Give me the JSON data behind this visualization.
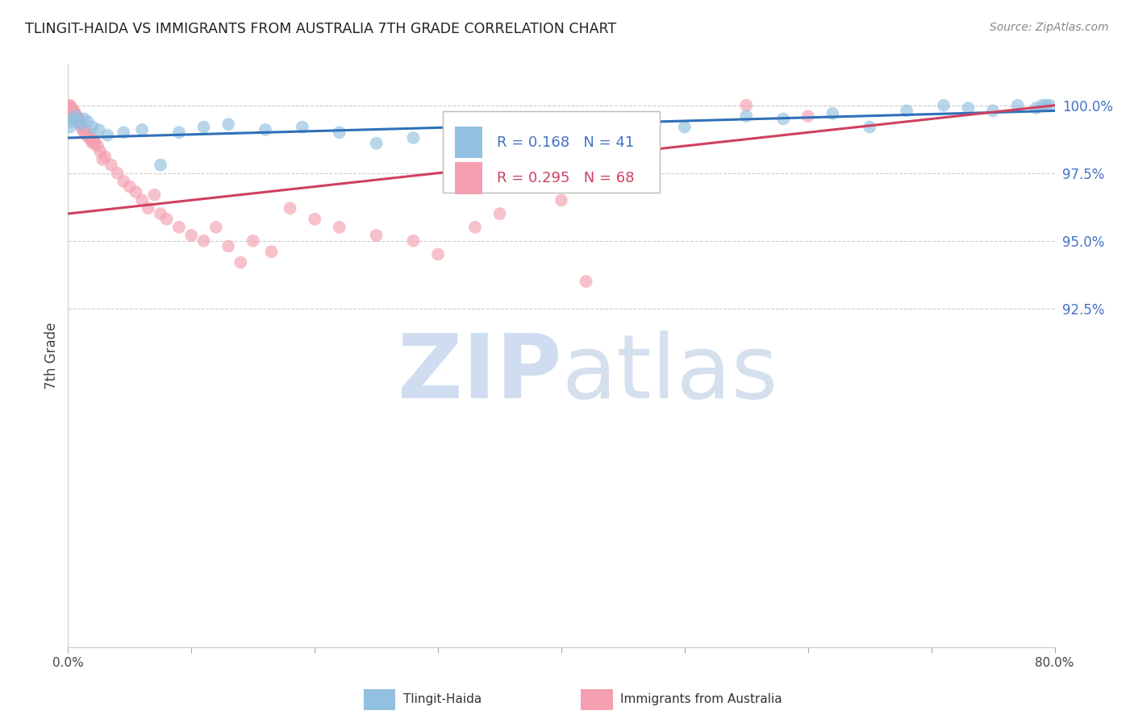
{
  "title": "TLINGIT-HAIDA VS IMMIGRANTS FROM AUSTRALIA 7TH GRADE CORRELATION CHART",
  "source": "Source: ZipAtlas.com",
  "ylabel": "7th Grade",
  "yaxis_values": [
    100.0,
    97.5,
    95.0,
    92.5
  ],
  "xlim": [
    0.0,
    80.0
  ],
  "ylim": [
    80.0,
    101.5
  ],
  "blue_R": 0.168,
  "blue_N": 41,
  "pink_R": 0.295,
  "pink_N": 68,
  "legend_label_blue": "Tlingit-Haida",
  "legend_label_pink": "Immigrants from Australia",
  "blue_color": "#92c0e0",
  "pink_color": "#f4a0b0",
  "blue_trend_color": "#3070b8",
  "pink_trend_color": "#d04060",
  "watermark_zip": "ZIP",
  "watermark_atlas": "atlas",
  "blue_x": [
    0.15,
    0.25,
    0.4,
    0.6,
    0.8,
    1.0,
    1.3,
    1.6,
    2.0,
    2.5,
    3.2,
    4.5,
    6.0,
    7.5,
    9.0,
    11.0,
    13.0,
    16.0,
    19.0,
    22.0,
    25.0,
    28.0,
    31.0,
    35.0,
    38.0,
    42.0,
    45.0,
    50.0,
    55.0,
    58.0,
    62.0,
    65.0,
    68.0,
    71.0,
    73.0,
    75.0,
    77.0,
    78.5,
    79.0,
    79.3,
    79.6
  ],
  "blue_y": [
    99.2,
    99.4,
    99.5,
    99.6,
    99.4,
    99.3,
    99.5,
    99.4,
    99.2,
    99.1,
    98.9,
    99.0,
    99.1,
    97.8,
    99.0,
    99.2,
    99.3,
    99.1,
    99.2,
    99.0,
    98.6,
    98.8,
    99.0,
    99.5,
    99.3,
    97.5,
    99.4,
    99.2,
    99.6,
    99.5,
    99.7,
    99.2,
    99.8,
    100.0,
    99.9,
    99.8,
    100.0,
    99.9,
    100.0,
    100.0,
    100.0
  ],
  "pink_x": [
    0.05,
    0.1,
    0.15,
    0.2,
    0.25,
    0.3,
    0.35,
    0.4,
    0.45,
    0.5,
    0.55,
    0.6,
    0.65,
    0.7,
    0.75,
    0.8,
    0.85,
    0.9,
    0.95,
    1.0,
    1.05,
    1.1,
    1.2,
    1.3,
    1.4,
    1.5,
    1.6,
    1.7,
    1.8,
    1.9,
    2.0,
    2.1,
    2.2,
    2.4,
    2.6,
    2.8,
    3.0,
    3.5,
    4.0,
    4.5,
    5.0,
    5.5,
    6.0,
    6.5,
    7.0,
    7.5,
    8.0,
    9.0,
    10.0,
    11.0,
    12.0,
    13.0,
    14.0,
    15.0,
    16.5,
    18.0,
    20.0,
    22.0,
    25.0,
    28.0,
    30.0,
    33.0,
    35.0,
    38.0,
    40.0,
    42.0,
    55.0,
    60.0
  ],
  "pink_y": [
    100.0,
    99.9,
    100.0,
    99.8,
    99.9,
    99.9,
    99.8,
    99.7,
    99.8,
    99.7,
    99.6,
    99.7,
    99.6,
    99.6,
    99.5,
    99.5,
    99.4,
    99.5,
    99.3,
    99.4,
    99.3,
    99.2,
    99.1,
    99.0,
    99.0,
    98.9,
    99.0,
    98.8,
    98.8,
    98.7,
    98.6,
    98.7,
    98.6,
    98.5,
    98.3,
    98.0,
    98.1,
    97.8,
    97.5,
    97.2,
    97.0,
    96.8,
    96.5,
    96.2,
    96.7,
    96.0,
    95.8,
    95.5,
    95.2,
    95.0,
    95.5,
    94.8,
    94.2,
    95.0,
    94.6,
    96.2,
    95.8,
    95.5,
    95.2,
    95.0,
    94.5,
    95.5,
    96.0,
    99.5,
    96.5,
    93.5,
    100.0,
    99.6
  ],
  "blue_trend_x": [
    0.0,
    80.0
  ],
  "blue_trend_y": [
    98.8,
    99.8
  ],
  "pink_trend_x": [
    0.0,
    80.0
  ],
  "pink_trend_y": [
    96.0,
    100.0
  ]
}
